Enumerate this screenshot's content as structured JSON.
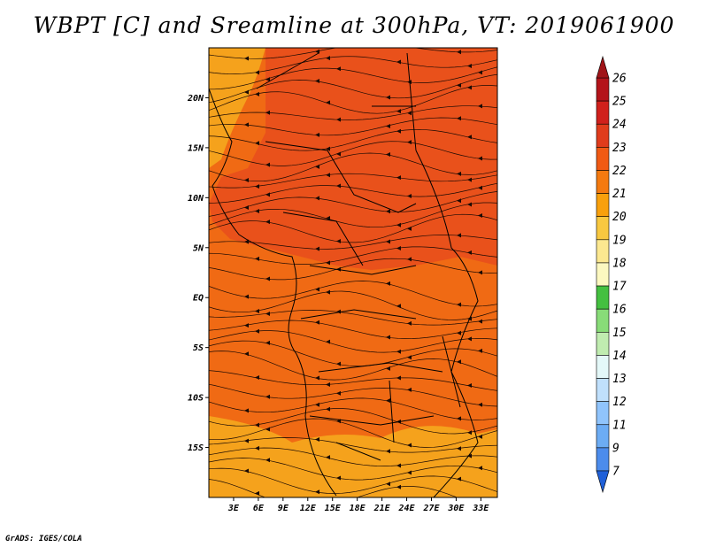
{
  "title": "WBPT [C] and Sreamline at 300hPa, VT: 2019061900",
  "credit": "GrADS: IGES/COLA",
  "map": {
    "lon_range": [
      0,
      35
    ],
    "lat_range": [
      -20,
      25
    ],
    "lon_ticks": [
      "3E",
      "6E",
      "9E",
      "12E",
      "15E",
      "18E",
      "21E",
      "24E",
      "27E",
      "30E",
      "33E"
    ],
    "lat_ticks": [
      "20N",
      "15N",
      "10N",
      "5N",
      "EQ",
      "5S",
      "10S",
      "15S"
    ],
    "base_fill": "#f06a14",
    "warm_fill": "#e84c1c",
    "cool_fill": "#f5a21c",
    "border_color": "#000000"
  },
  "colorbar": {
    "levels": [
      "26",
      "25",
      "24",
      "23",
      "22",
      "21",
      "20",
      "19",
      "18",
      "17",
      "16",
      "15",
      "14",
      "13",
      "12",
      "11",
      "9",
      "7"
    ],
    "colors": [
      "#b4141a",
      "#d0201c",
      "#e03c1c",
      "#f05a14",
      "#f47a10",
      "#f8a00c",
      "#f8c840",
      "#fce890",
      "#fcf8c0",
      "#44c040",
      "#88dc78",
      "#c0ecb0",
      "#e4f8f8",
      "#c0e0fc",
      "#90c4fc",
      "#6cacf4",
      "#4c8cec",
      "#2c6ce0"
    ],
    "top_color": "#a01418",
    "bottom_color": "#2060d8"
  }
}
